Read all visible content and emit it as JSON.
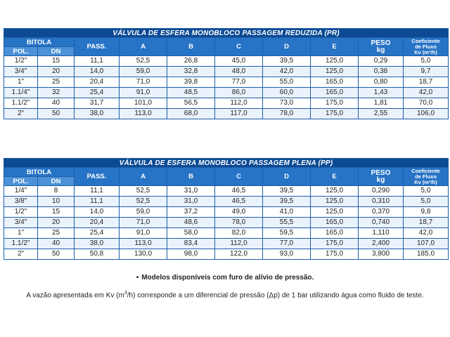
{
  "tables": [
    {
      "title": "VÁLVULA DE ESFERA MONOBLOCO PASSAGEM REDUZIDA  (PR)",
      "headers": {
        "bitola": "BITOLA",
        "pol": "POL.",
        "dn": "DN",
        "pass": "PASS.",
        "a": "A",
        "b": "B",
        "c": "C",
        "d": "D",
        "e": "E",
        "peso": "PESO",
        "peso_unit": "kg",
        "kv_line1": "Coeficiente",
        "kv_line2": "de Fluxo",
        "kv_line3": "Kv (m³/h)"
      },
      "rows": [
        [
          "1/2\"",
          "15",
          "11,1",
          "52,5",
          "26,8",
          "45,0",
          "39,5",
          "125,0",
          "0,29",
          "5,0"
        ],
        [
          "3/4\"",
          "20",
          "14,0",
          "59,0",
          "32,8",
          "48,0",
          "42,0",
          "125,0",
          "0,38",
          "9,7"
        ],
        [
          "1\"",
          "25",
          "20,4",
          "71,0",
          "39,8",
          "77,0",
          "55,0",
          "165,0",
          "0,80",
          "18,7"
        ],
        [
          "1.1/4\"",
          "32",
          "25,4",
          "91,0",
          "48,5",
          "86,0",
          "60,0",
          "165,0",
          "1,43",
          "42,0"
        ],
        [
          "1.1/2\"",
          "40",
          "31,7",
          "101,0",
          "56,5",
          "112,0",
          "73,0",
          "175,0",
          "1,81",
          "70,0"
        ],
        [
          "2\"",
          "50",
          "38,0",
          "113,0",
          "68,0",
          "117,0",
          "78,0",
          "175,0",
          "2,55",
          "106,0"
        ]
      ]
    },
    {
      "title": "VÁLVULA DE ESFERA MONOBLOCO PASSAGEM PLENA  (PP)",
      "headers": {
        "bitola": "BITOLA",
        "pol": "POL.",
        "dn": "DN",
        "pass": "PASS.",
        "a": "A",
        "b": "B",
        "c": "C",
        "d": "D",
        "e": "E",
        "peso": "PESO",
        "peso_unit": "kg",
        "kv_line1": "Coeficiente",
        "kv_line2": "de Fluxo",
        "kv_line3": "Kv (m³/h)"
      },
      "rows": [
        [
          "1/4\"",
          "8",
          "11,1",
          "52,5",
          "31,0",
          "46,5",
          "39,5",
          "125,0",
          "0,290",
          "5,0"
        ],
        [
          "3/8\"",
          "10",
          "11,1",
          "52,5",
          "31,0",
          "46,5",
          "39,5",
          "125,0",
          "0,310",
          "5,0"
        ],
        [
          "1/2\"",
          "15",
          "14,0",
          "59,0",
          "37,2",
          "49,0",
          "41,0",
          "125,0",
          "0,370",
          "9,8"
        ],
        [
          "3/4\"",
          "20",
          "20,4",
          "71,0",
          "48,6",
          "78,0",
          "55,5",
          "165,0",
          "0,740",
          "18,7"
        ],
        [
          "1\"",
          "25",
          "25,4",
          "91,0",
          "58,0",
          "82,0",
          "59,5",
          "165,0",
          "1,110",
          "42,0"
        ],
        [
          "1.1/2\"",
          "40",
          "38,0",
          "113,0",
          "83,4",
          "112,0",
          "77,0",
          "175,0",
          "2,400",
          "107,0"
        ],
        [
          "2\"",
          "50",
          "50,8",
          "130,0",
          "98,0",
          "122,0",
          "93,0",
          "175,0",
          "3,800",
          "185,0"
        ]
      ]
    }
  ],
  "notes": {
    "bullet": "•",
    "models": "Modelos disponíveis com furo de alívio de pressão.",
    "kv_before": "A vazão apresentada em Kv (m",
    "kv_sup": "3",
    "kv_after": "/h) corresponde a um diferencial de pressão (Δp) de 1 bar utilizando água como fluido de teste."
  }
}
